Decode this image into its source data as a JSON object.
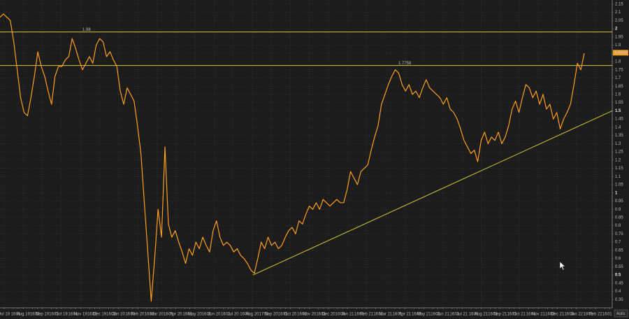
{
  "chart_data": {
    "type": "line",
    "ylim": [
      0.3,
      2.175
    ],
    "yticks": [
      0.35,
      0.4,
      0.45,
      0.5,
      0.55,
      0.6,
      0.65,
      0.7,
      0.75,
      0.8,
      0.85,
      0.9,
      0.95,
      1,
      1.05,
      1.1,
      1.15,
      1.2,
      1.25,
      1.3,
      1.35,
      1.4,
      1.45,
      1.5,
      1.55,
      1.6,
      1.65,
      1.7,
      1.75,
      1.8,
      1.85,
      1.9,
      1.95,
      2,
      2.05,
      2.1,
      2.15
    ],
    "xticks": [
      "Jul 19",
      "16",
      "01",
      "Aug 19",
      "16",
      "03",
      "Sep 19",
      "16",
      "01",
      "Oct 19",
      "16",
      "01",
      "Nov 19",
      "16",
      "02",
      "Dec 19",
      "16",
      "02",
      "Jan 20",
      "16",
      "03",
      "Feb 20",
      "16",
      "02",
      "Mar 20",
      "16",
      "01",
      "Apr 20",
      "16",
      "01",
      "May 20",
      "16",
      "01",
      "Jun 20",
      "16",
      "01",
      "Jul 20",
      "16",
      "03",
      "Aug 20",
      "17",
      "01",
      "Sep 20",
      "16",
      "01",
      "Oct 20",
      "16",
      "02",
      "Nov 20",
      "16",
      "01",
      "Dec 20",
      "16",
      "04",
      "Jan 21",
      "16",
      "01",
      "Feb 21",
      "16",
      "01",
      "Mar 21",
      "16",
      "01",
      "Apr 21",
      "16",
      "03",
      "May 21",
      "16",
      "01",
      "Jun 21",
      "16",
      "01",
      "Jul 21",
      "16",
      "02",
      "Aug 21",
      "16",
      "01",
      "Sep 21",
      "16",
      "01",
      "Oct 21",
      "16",
      "01",
      "Nov 21",
      "16",
      "03",
      "Dec 21",
      "16",
      "03",
      "Jan 22",
      "18",
      "01",
      "Feb 22",
      "16",
      "01"
    ],
    "series": [
      {
        "color": "#ff9f1a",
        "values": [
          2.07,
          2.09,
          2.07,
          2.05,
          1.92,
          1.75,
          1.58,
          1.49,
          1.47,
          1.58,
          1.71,
          1.86,
          1.77,
          1.71,
          1.62,
          1.54,
          1.71,
          1.77,
          1.77,
          1.81,
          1.83,
          1.94,
          1.88,
          1.81,
          1.75,
          1.79,
          1.83,
          1.79,
          1.9,
          1.94,
          1.92,
          1.83,
          1.86,
          1.81,
          1.77,
          1.62,
          1.54,
          1.64,
          1.6,
          1.56,
          1.41,
          1.24,
          0.94,
          0.64,
          0.34,
          0.6,
          0.9,
          0.73,
          1.28,
          0.81,
          0.73,
          0.77,
          0.7,
          0.64,
          0.57,
          0.66,
          0.62,
          0.7,
          0.66,
          0.73,
          0.68,
          0.64,
          0.77,
          0.83,
          0.73,
          0.68,
          0.7,
          0.68,
          0.64,
          0.66,
          0.62,
          0.6,
          0.57,
          0.53,
          0.51,
          0.6,
          0.7,
          0.66,
          0.73,
          0.68,
          0.7,
          0.66,
          0.68,
          0.73,
          0.77,
          0.79,
          0.75,
          0.83,
          0.81,
          0.87,
          0.92,
          0.9,
          0.94,
          0.9,
          0.96,
          0.94,
          0.92,
          0.94,
          0.96,
          0.94,
          0.94,
          1.02,
          1.13,
          1.09,
          1.05,
          1.13,
          1.15,
          1.17,
          1.26,
          1.34,
          1.41,
          1.54,
          1.6,
          1.66,
          1.71,
          1.75,
          1.73,
          1.66,
          1.62,
          1.66,
          1.6,
          1.62,
          1.58,
          1.64,
          1.69,
          1.64,
          1.62,
          1.6,
          1.58,
          1.54,
          1.58,
          1.51,
          1.49,
          1.45,
          1.39,
          1.32,
          1.28,
          1.24,
          1.26,
          1.19,
          1.32,
          1.37,
          1.3,
          1.34,
          1.32,
          1.37,
          1.3,
          1.34,
          1.41,
          1.51,
          1.56,
          1.49,
          1.58,
          1.66,
          1.64,
          1.58,
          1.62,
          1.54,
          1.6,
          1.51,
          1.54,
          1.45,
          1.49,
          1.39,
          1.45,
          1.49,
          1.54,
          1.66,
          1.79,
          1.75,
          1.85
        ]
      }
    ],
    "hlines": [
      1.98,
      1.7758
    ],
    "hline_color": "#d8c82a",
    "trendline": [
      0.5,
      1.5
    ],
    "last_value": 1.8538,
    "auto_label": "Auto",
    "grid": true
  }
}
